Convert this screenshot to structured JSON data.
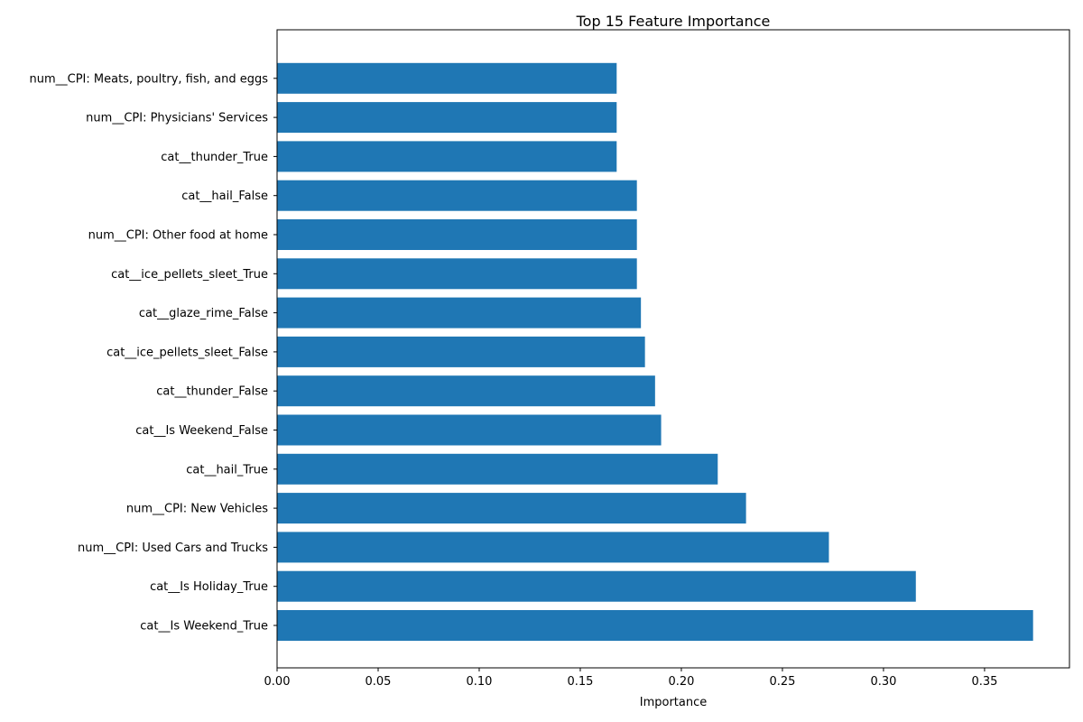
{
  "chart_data": {
    "type": "bar",
    "orientation": "horizontal",
    "title": "Top 15 Feature Importance",
    "xlabel": "Importance",
    "ylabel": "",
    "xlim": [
      0,
      0.392
    ],
    "xticks": [
      "0.00",
      "0.05",
      "0.10",
      "0.15",
      "0.20",
      "0.25",
      "0.30",
      "0.35"
    ],
    "categories": [
      "cat__Is Weekend_True",
      "cat__Is Holiday_True",
      "num__CPI: Used Cars and Trucks",
      "num__CPI: New Vehicles",
      "cat__hail_True",
      "cat__Is Weekend_False",
      "cat__thunder_False",
      "cat__ice_pellets_sleet_False",
      "cat__glaze_rime_False",
      "cat__ice_pellets_sleet_True",
      "num__CPI: Other food at home",
      "cat__hail_False",
      "cat__thunder_True",
      "num__CPI: Physicians' Services",
      "num__CPI: Meats, poultry, fish, and eggs"
    ],
    "values": [
      0.374,
      0.316,
      0.273,
      0.232,
      0.218,
      0.19,
      0.187,
      0.182,
      0.18,
      0.178,
      0.178,
      0.178,
      0.168,
      0.168,
      0.168
    ],
    "bar_color": "#1f77b4",
    "grid": false,
    "legend": "none"
  }
}
